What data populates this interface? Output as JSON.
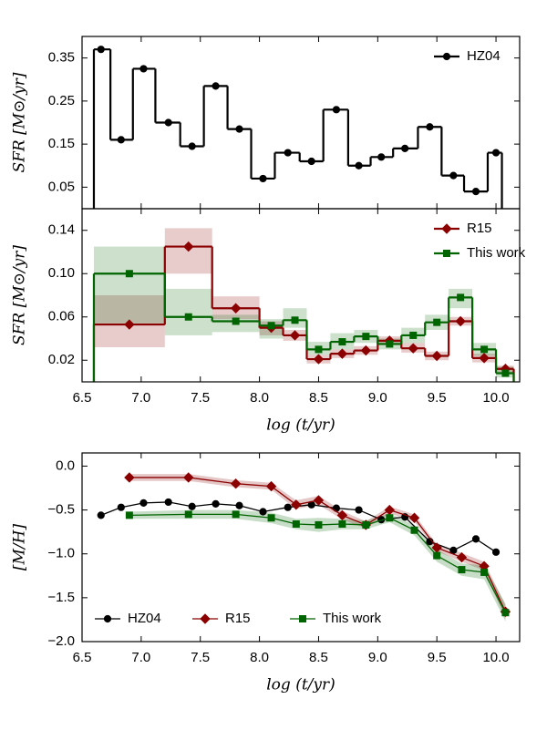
{
  "chart_data": [
    {
      "type": "step",
      "ylabel": "SFR [M⊙/yr]",
      "legend": "upper right",
      "x": [
        6.66,
        6.83,
        7.02,
        7.23,
        7.43,
        7.63,
        7.83,
        8.03,
        8.24,
        8.44,
        8.65,
        8.84,
        9.03,
        9.23,
        9.44,
        9.64,
        9.83,
        10.0
      ],
      "bins": [
        6.6,
        6.74,
        6.93,
        7.12,
        7.33,
        7.53,
        7.73,
        7.93,
        8.13,
        8.34,
        8.54,
        8.75,
        8.94,
        9.13,
        9.34,
        9.54,
        9.73,
        9.93,
        10.05
      ],
      "series": [
        {
          "name": "HZ04",
          "color": "#000000",
          "marker": "o",
          "values": [
            0.37,
            0.16,
            0.325,
            0.2,
            0.145,
            0.285,
            0.185,
            0.07,
            0.13,
            0.11,
            0.23,
            0.1,
            0.12,
            0.14,
            0.19,
            0.077,
            0.04,
            0.13
          ]
        }
      ],
      "xlim": [
        6.5,
        10.2
      ],
      "ylim": [
        0,
        0.4
      ],
      "yticks": [
        0.05,
        0.15,
        0.25,
        0.35
      ]
    },
    {
      "type": "step",
      "xlabel": "log (t/yr)",
      "ylabel": "SFR [M⊙/yr]",
      "legend": "upper right",
      "x": [
        6.9,
        7.4,
        7.8,
        8.1,
        8.3,
        8.5,
        8.7,
        8.9,
        9.1,
        9.3,
        9.5,
        9.7,
        9.9,
        10.08
      ],
      "bins": [
        6.6,
        7.2,
        7.6,
        8.0,
        8.2,
        8.4,
        8.6,
        8.8,
        9.0,
        9.2,
        9.4,
        9.6,
        9.8,
        10.0,
        10.15
      ],
      "series": [
        {
          "name": "R15",
          "color": "#8b0000",
          "marker": "D",
          "values": [
            0.053,
            0.125,
            0.068,
            0.05,
            0.043,
            0.021,
            0.026,
            0.029,
            0.038,
            0.031,
            0.024,
            0.056,
            0.022,
            0.012
          ],
          "lower": [
            0.032,
            0.1,
            0.058,
            0.043,
            0.038,
            0.017,
            0.022,
            0.025,
            0.034,
            0.027,
            0.02,
            0.052,
            0.018,
            0.009
          ],
          "upper": [
            0.08,
            0.142,
            0.079,
            0.056,
            0.048,
            0.025,
            0.03,
            0.033,
            0.042,
            0.036,
            0.028,
            0.06,
            0.026,
            0.015
          ]
        },
        {
          "name": "This work",
          "color": "#006400",
          "marker": "s",
          "values": [
            0.1,
            0.06,
            0.056,
            0.052,
            0.057,
            0.03,
            0.037,
            0.042,
            0.035,
            0.043,
            0.055,
            0.078,
            0.03,
            0.008
          ],
          "lower": [
            0.054,
            0.043,
            0.046,
            0.04,
            0.05,
            0.025,
            0.03,
            0.036,
            0.03,
            0.036,
            0.048,
            0.068,
            0.024,
            0.004
          ],
          "upper": [
            0.125,
            0.086,
            0.062,
            0.058,
            0.068,
            0.037,
            0.045,
            0.048,
            0.04,
            0.05,
            0.062,
            0.086,
            0.036,
            0.014
          ]
        }
      ],
      "xlim": [
        6.5,
        10.2
      ],
      "ylim": [
        0,
        0.16
      ],
      "xticks": [
        6.5,
        {
          "value": 7,
          "label": "7.0"
        },
        7.5,
        {
          "value": 8,
          "label": "8.0"
        },
        8.5,
        {
          "value": 9,
          "label": "9.0"
        },
        9.5,
        {
          "value": 10,
          "label": "10.0"
        }
      ],
      "yticks": [
        0.02,
        0.06,
        {
          "value": 0.1,
          "label": "0.10"
        },
        0.14
      ]
    },
    {
      "type": "line",
      "xlabel": "log (t/yr)",
      "ylabel": "[M/H]",
      "legend": "lower left",
      "series": [
        {
          "name": "HZ04",
          "color": "#000000",
          "marker": "o",
          "x": [
            6.66,
            6.83,
            7.02,
            7.23,
            7.43,
            7.63,
            7.83,
            8.03,
            8.24,
            8.44,
            8.65,
            8.84,
            9.03,
            9.23,
            9.44,
            9.64,
            9.83,
            10.0
          ],
          "values": [
            -0.56,
            -0.47,
            -0.42,
            -0.41,
            -0.46,
            -0.43,
            -0.45,
            -0.52,
            -0.47,
            -0.44,
            -0.48,
            -0.5,
            -0.61,
            -0.58,
            -0.86,
            -0.96,
            -0.83,
            -0.98
          ]
        },
        {
          "name": "R15",
          "color": "#8b0000",
          "marker": "D",
          "x": [
            6.9,
            7.4,
            7.8,
            8.1,
            8.31,
            8.5,
            8.7,
            8.9,
            9.1,
            9.31,
            9.5,
            9.71,
            9.9,
            10.08
          ],
          "values": [
            -0.13,
            -0.13,
            -0.2,
            -0.23,
            -0.44,
            -0.39,
            -0.56,
            -0.67,
            -0.5,
            -0.59,
            -0.93,
            -1.04,
            -1.14,
            -1.66
          ],
          "error": [
            0.04,
            0.04,
            0.04,
            0.04,
            0.05,
            0.05,
            0.05,
            0.04,
            0.04,
            0.04,
            0.04,
            0.05,
            0.05,
            0.08
          ]
        },
        {
          "name": "This work",
          "color": "#006400",
          "marker": "s",
          "x": [
            6.9,
            7.4,
            7.8,
            8.1,
            8.31,
            8.5,
            8.7,
            8.9,
            9.1,
            9.31,
            9.5,
            9.71,
            9.9,
            10.08
          ],
          "values": [
            -0.56,
            -0.55,
            -0.55,
            -0.59,
            -0.66,
            -0.67,
            -0.66,
            -0.67,
            -0.59,
            -0.73,
            -1.02,
            -1.18,
            -1.21,
            -1.67
          ],
          "error": [
            0.04,
            0.05,
            0.05,
            0.06,
            0.06,
            0.08,
            0.06,
            0.05,
            0.05,
            0.06,
            0.07,
            0.07,
            0.08,
            0.1
          ]
        }
      ],
      "xlim": [
        6.5,
        10.2
      ],
      "ylim": [
        -2.0,
        0.15
      ],
      "xticks": [
        6.5,
        {
          "value": 7,
          "label": "7.0"
        },
        7.5,
        {
          "value": 8,
          "label": "8.0"
        },
        8.5,
        {
          "value": 9,
          "label": "9.0"
        },
        9.5,
        {
          "value": 10,
          "label": "10.0"
        }
      ],
      "yticks": [
        {
          "value": 0,
          "label": "0.0"
        },
        {
          "value": -0.5,
          "label": "−0.5"
        },
        {
          "value": -1,
          "label": "−1.0"
        },
        {
          "value": -1.5,
          "label": "−1.5"
        },
        {
          "value": -2,
          "label": "−2.0"
        }
      ]
    }
  ]
}
